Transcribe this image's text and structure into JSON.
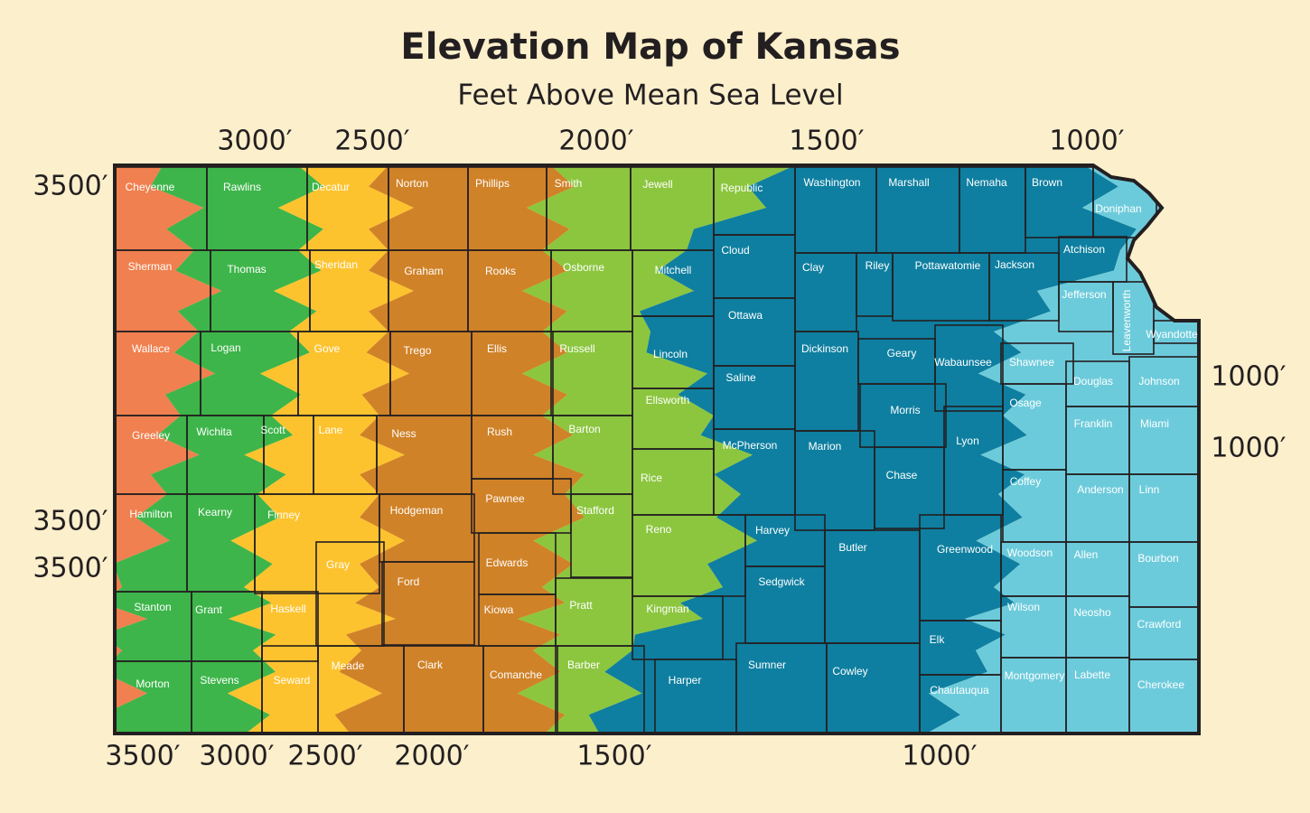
{
  "title": "Elevation Map of Kansas",
  "subtitle": "Feet Above Mean Sea Level",
  "elevation_labels": {
    "top": [
      "3000′",
      "2500′",
      "2000′",
      "1500′",
      "1000′"
    ],
    "left": [
      "3500′",
      "3500′",
      "3500′"
    ],
    "right": [
      "1000′",
      "1000′"
    ],
    "bottom": [
      "3500′",
      "3000′",
      "2500′",
      "2000′",
      "1500′",
      "1000′"
    ]
  },
  "counties": [
    "Cheyenne",
    "Rawlins",
    "Decatur",
    "Norton",
    "Phillips",
    "Smith",
    "Jewell",
    "Republic",
    "Washington",
    "Marshall",
    "Nemaha",
    "Brown",
    "Doniphan",
    "Sherman",
    "Thomas",
    "Sheridan",
    "Graham",
    "Rooks",
    "Osborne",
    "Mitchell",
    "Cloud",
    "Clay",
    "Riley",
    "Pottawatomie",
    "Jackson",
    "Atchison",
    "Jefferson",
    "Leavenworth",
    "Wyandotte",
    "Wallace",
    "Logan",
    "Gove",
    "Trego",
    "Ellis",
    "Russell",
    "Lincoln",
    "Ottawa",
    "Dickinson",
    "Geary",
    "Wabaunsee",
    "Shawnee",
    "Douglas",
    "Johnson",
    "Greeley",
    "Wichita",
    "Scott",
    "Lane",
    "Ness",
    "Rush",
    "Barton",
    "Ellsworth",
    "Saline",
    "Morris",
    "Lyon",
    "Osage",
    "Franklin",
    "Miami",
    "Marion",
    "Chase",
    "McPherson",
    "Rice",
    "Hamilton",
    "Kearny",
    "Finney",
    "Hodgeman",
    "Pawnee",
    "Stafford",
    "Reno",
    "Harvey",
    "Coffey",
    "Anderson",
    "Linn",
    "Butler",
    "Greenwood",
    "Woodson",
    "Allen",
    "Bourbon",
    "Gray",
    "Edwards",
    "Ford",
    "Stanton",
    "Grant",
    "Haskell",
    "Kiowa",
    "Pratt",
    "Kingman",
    "Sedgwick",
    "Wilson",
    "Neosho",
    "Crawford",
    "Elk",
    "Morton",
    "Stevens",
    "Seward",
    "Meade",
    "Clark",
    "Comanche",
    "Barber",
    "Harper",
    "Sumner",
    "Cowley",
    "Chautauqua",
    "Montgomery",
    "Labette",
    "Cherokee"
  ]
}
